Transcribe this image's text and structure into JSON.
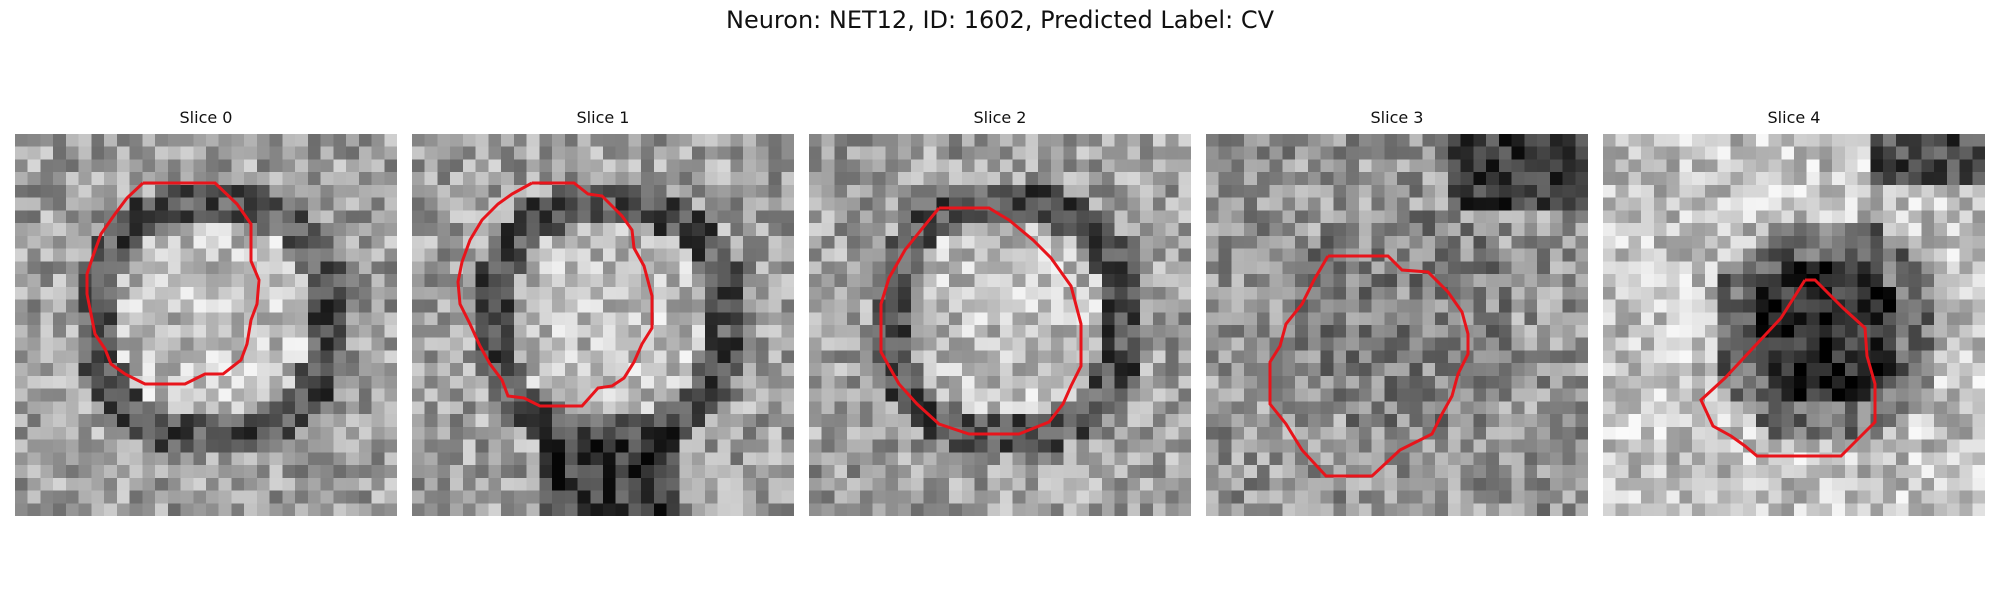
{
  "figure": {
    "title": "Neuron: NET12, ID: 1602, Predicted Label: CV"
  },
  "panels": [
    {
      "title": "Slice 0",
      "contour_color": "#e8141b"
    },
    {
      "title": "Slice 1",
      "contour_color": "#e8141b"
    },
    {
      "title": "Slice 2",
      "contour_color": "#e8141b"
    },
    {
      "title": "Slice 3",
      "contour_color": "#e8141b"
    },
    {
      "title": "Slice 4",
      "contour_color": "#e8141b"
    }
  ],
  "colormap": "grayscale"
}
